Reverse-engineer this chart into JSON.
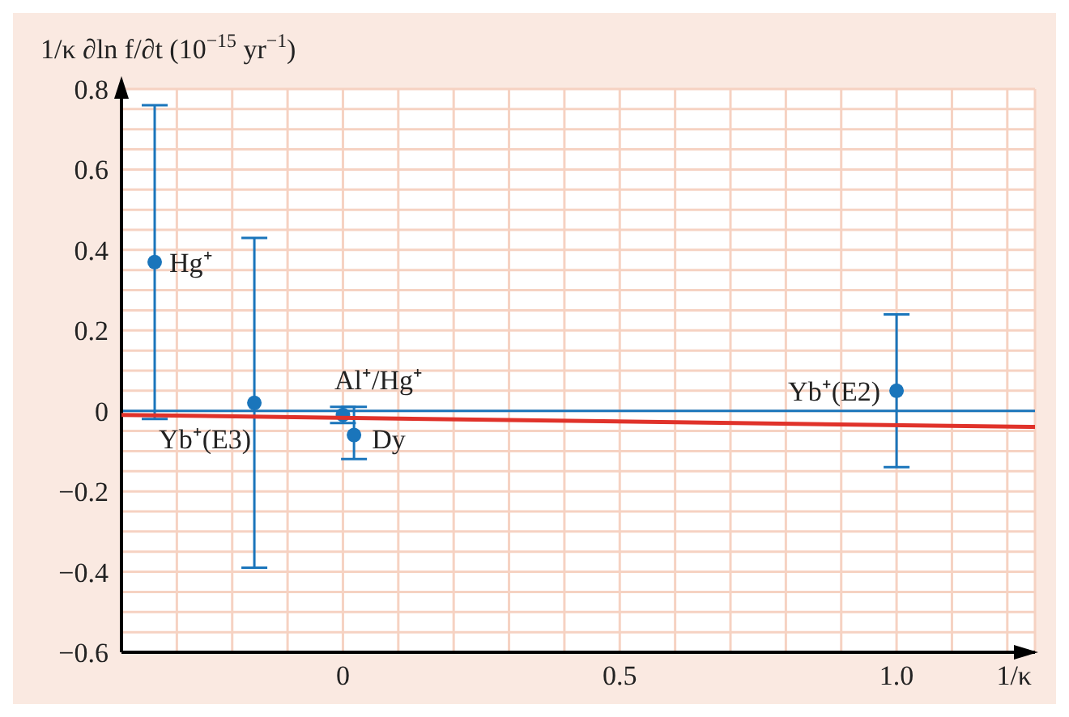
{
  "chart_data": {
    "type": "scatter",
    "xlabel": "1/κ",
    "ylabel": "1/κ ∂ln f/∂t (10$^{−15}$ yr$^{−1}$)",
    "xlim": [
      -0.4,
      1.25
    ],
    "xticks": [
      {
        "value": -0.3,
        "label": null
      },
      {
        "value": -0.2,
        "label": null
      },
      {
        "value": -0.1,
        "label": null
      },
      0,
      {
        "value": 0.1,
        "label": null
      },
      {
        "value": 0.2,
        "label": null
      },
      {
        "value": 0.3,
        "label": null
      },
      {
        "value": 0.4,
        "label": null
      },
      0.5,
      {
        "value": 0.6,
        "label": null
      },
      {
        "value": 0.7,
        "label": null
      },
      {
        "value": 0.8,
        "label": null
      },
      {
        "value": 0.9,
        "label": null
      },
      {
        "value": 1.0,
        "label": "1.0"
      },
      {
        "value": 1.1,
        "label": null
      },
      {
        "value": 1.2,
        "label": null
      }
    ],
    "ylim": [
      -0.6,
      0.8
    ],
    "yticks": [
      -0.6,
      {
        "value": -0.55,
        "label": null
      },
      {
        "value": -0.5,
        "label": null
      },
      {
        "value": -0.45,
        "label": null
      },
      -0.4,
      {
        "value": -0.35,
        "label": null
      },
      {
        "value": -0.3,
        "label": null
      },
      {
        "value": -0.25,
        "label": null
      },
      -0.2,
      {
        "value": -0.15,
        "label": null
      },
      {
        "value": -0.1,
        "label": null
      },
      {
        "value": -0.05,
        "label": null
      },
      0,
      {
        "value": 0.05,
        "label": null
      },
      {
        "value": 0.1,
        "label": null
      },
      {
        "value": 0.15,
        "label": null
      },
      0.2,
      {
        "value": 0.25,
        "label": null
      },
      {
        "value": 0.3,
        "label": null
      },
      {
        "value": 0.35,
        "label": null
      },
      0.4,
      {
        "value": 0.45,
        "label": null
      },
      {
        "value": 0.5,
        "label": null
      },
      {
        "value": 0.55,
        "label": null
      },
      0.6,
      {
        "value": 0.65,
        "label": null
      },
      {
        "value": 0.7,
        "label": null
      },
      {
        "value": 0.75,
        "label": null
      },
      0.8
    ],
    "grid": true,
    "series": [
      {
        "marker": "circle",
        "color": "#1a75bb",
        "x": [
          -0.34,
          -0.16,
          0,
          0.02,
          1.0
        ],
        "values": [
          0.37,
          0.02,
          -0.01,
          -0.06,
          0.05
        ],
        "errors": [
          [
            -0.02,
            0.76
          ],
          [
            -0.39,
            0.43
          ],
          [
            -0.03,
            0.01
          ],
          [
            -0.12,
            0.01
          ],
          [
            -0.14,
            0.24
          ]
        ]
      },
      {
        "type": "line",
        "marker": "none",
        "color": "#e0322a",
        "x": [
          -0.4,
          1.25
        ],
        "values": [
          -0.01,
          -0.04
        ]
      }
    ],
    "ref_lines": [
      {
        "axis": "y",
        "value": 0,
        "color": "#1a75bb"
      }
    ],
    "annotations": [
      {
        "text": "Hg⁺",
        "x": -0.34,
        "y": 0.37
      },
      {
        "text": "Yb⁺(E3)",
        "x": -0.16,
        "y": 0.02
      },
      {
        "text": "Al⁺/Hg⁺",
        "x": 0,
        "y": -0.01
      },
      {
        "text": "Dy",
        "x": 0.02,
        "y": -0.06
      },
      {
        "text": "Yb⁺(E2)",
        "x": 1.0,
        "y": 0.05
      }
    ]
  }
}
